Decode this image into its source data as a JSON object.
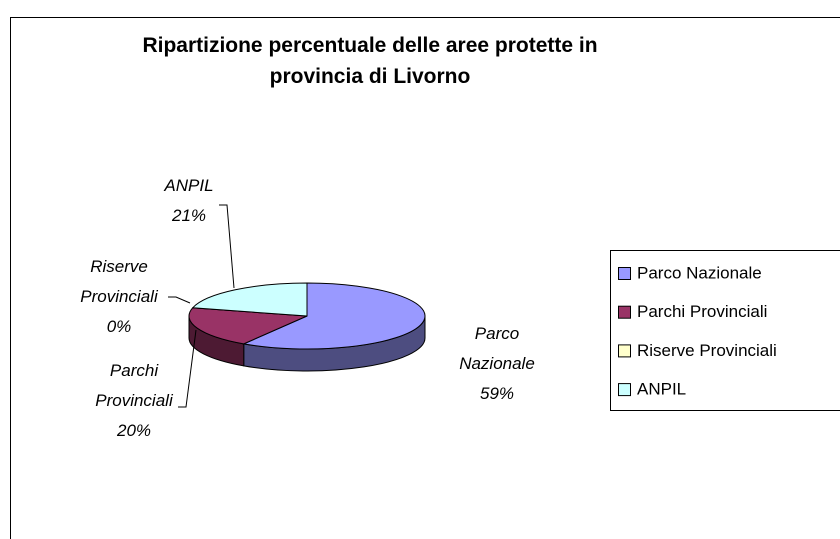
{
  "chart_data": {
    "type": "pie3d",
    "title": "Ripartizione percentuale delle aree protette in provincia di Livorno",
    "categories": [
      "Parco Nazionale",
      "Parchi Provinciali",
      "Riserve Provinciali",
      "ANPIL"
    ],
    "values": [
      59,
      20,
      0,
      21
    ],
    "value_labels": [
      "59%",
      "20%",
      "0%",
      "21%"
    ],
    "colors": [
      "#9999ff",
      "#993366",
      "#ffffcc",
      "#ccffff"
    ],
    "legend": "right"
  }
}
